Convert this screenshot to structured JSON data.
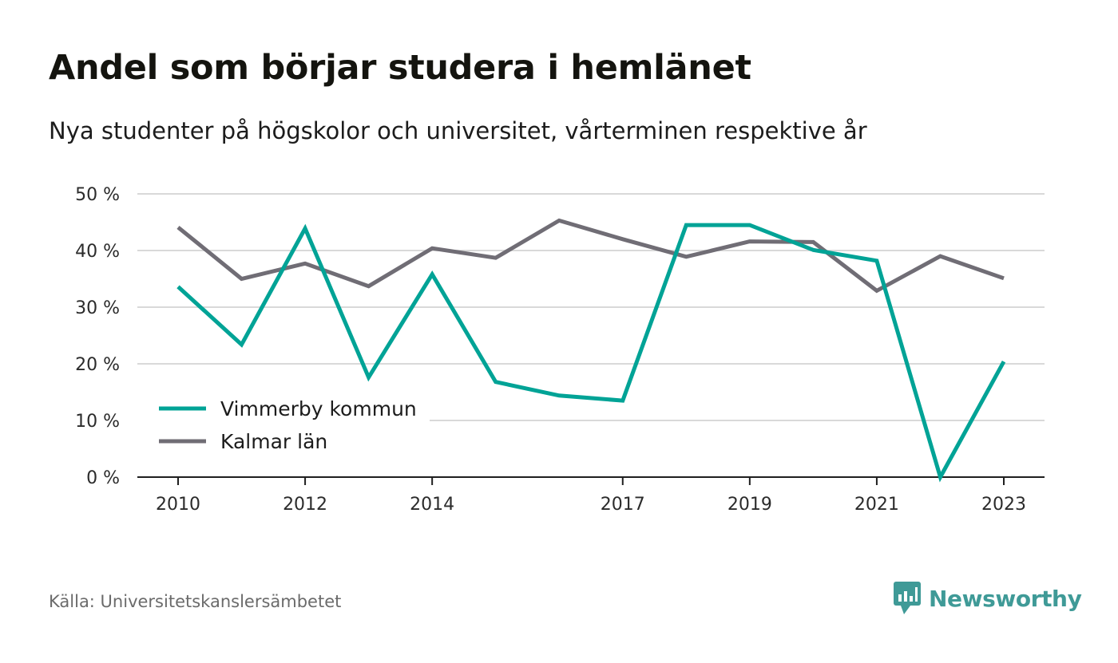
{
  "header": {
    "title": "Andel som börjar studera i hemlänet",
    "subtitle": "Nya studenter på högskolor och universitet, vårterminen respektive år"
  },
  "chart_data": {
    "type": "line",
    "title": "Andel som börjar studera i hemlänet",
    "subtitle": "Nya studenter på högskolor och universitet, vårterminen respektive år",
    "x": [
      2010,
      2011,
      2012,
      2013,
      2014,
      2015,
      2016,
      2017,
      2018,
      2019,
      2020,
      2021,
      2022,
      2023
    ],
    "x_tick_labels": [
      "2010",
      "2012",
      "2014",
      "2017",
      "2019",
      "2021",
      "2023"
    ],
    "y_tick_labels": [
      "0 %",
      "10 %",
      "20 %",
      "30 %",
      "40 %",
      "50 %"
    ],
    "ylim": [
      0,
      50
    ],
    "grid": true,
    "legend_position": "bottom-left",
    "series": [
      {
        "name": "Vimmerby kommun",
        "color": "#00a396",
        "values": [
          33.6,
          23.4,
          43.9,
          17.6,
          35.8,
          16.8,
          14.4,
          13.5,
          44.5,
          44.5,
          40.1,
          38.2,
          0.0,
          20.4
        ]
      },
      {
        "name": "Kalmar län",
        "color": "#706d75",
        "values": [
          44.1,
          35.0,
          37.7,
          33.7,
          40.4,
          38.7,
          45.3,
          42.0,
          38.9,
          41.6,
          41.5,
          32.9,
          39.0,
          35.1
        ]
      }
    ]
  },
  "footer": {
    "source": "Källa: Universitetskanslersämbetet",
    "brand": "Newsworthy",
    "brand_icon": "newsworthy-logo-icon",
    "brand_color": "#3f9a97"
  }
}
